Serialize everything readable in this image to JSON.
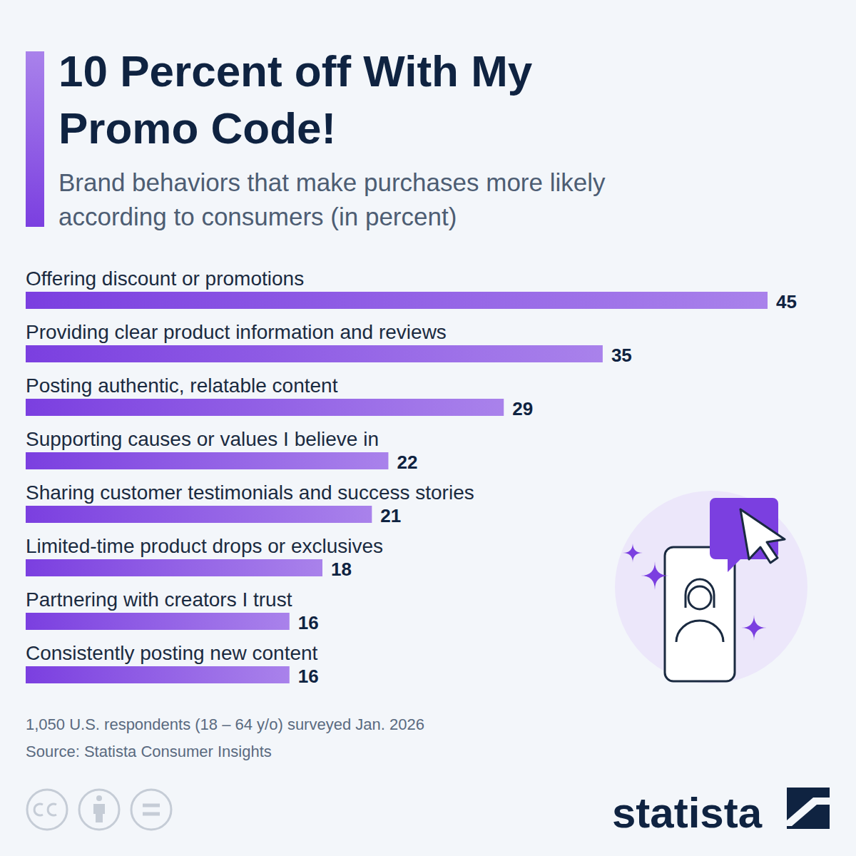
{
  "chart_data": {
    "type": "bar",
    "orientation": "horizontal",
    "title": "10 Percent off With My Promo Code!",
    "subtitle": "Brand behaviors that make purchases more likely according to consumers (in percent)",
    "categories": [
      "Offering discount or promotions",
      "Providing clear product information and reviews",
      "Posting authentic, relatable content",
      "Supporting causes or values I believe in",
      "Sharing customer testimonials and success stories",
      "Limited-time product drops or exclusives",
      "Partnering with creators I trust",
      "Consistently posting new content"
    ],
    "values": [
      45,
      35,
      29,
      22,
      21,
      18,
      16,
      16
    ],
    "color": "#7b3fe0",
    "xlim": [
      0,
      45
    ],
    "data_labels": true,
    "footnote": "1,050 U.S. respondents (18 – 64 y/o) surveyed Jan. 2026",
    "source": "Source: Statista Consumer Insights",
    "logo": "statista"
  }
}
